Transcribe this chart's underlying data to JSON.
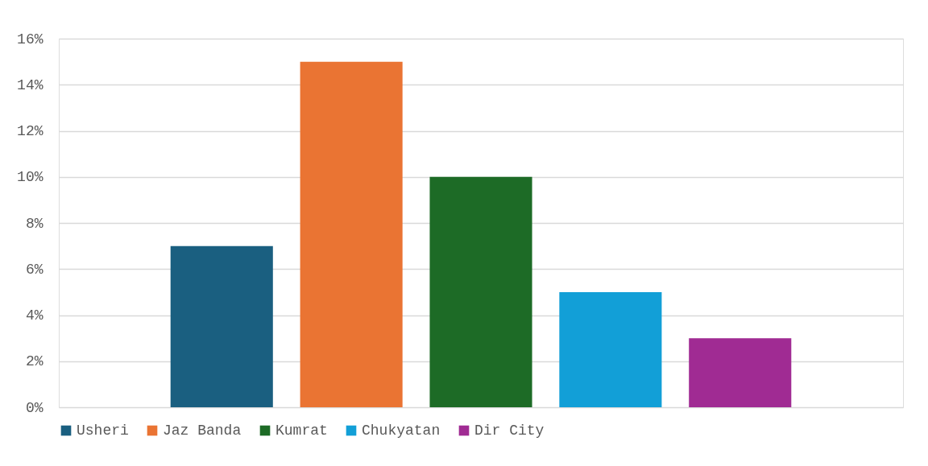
{
  "chart_data": {
    "type": "bar",
    "categories": [
      null
    ],
    "series": [
      {
        "name": "Usheri",
        "color": "#1a5f80",
        "values": [
          7
        ]
      },
      {
        "name": "Jaz Banda",
        "color": "#ea7433",
        "values": [
          15
        ]
      },
      {
        "name": "Kumrat",
        "color": "#1d6b26",
        "values": [
          10
        ]
      },
      {
        "name": "Chukyatan",
        "color": "#129fd7",
        "values": [
          5
        ]
      },
      {
        "name": "Dir City",
        "color": "#a02b93",
        "values": [
          3
        ]
      }
    ],
    "ylim": [
      0,
      16
    ],
    "yticks": [
      {
        "value": 0,
        "label": "0%"
      },
      {
        "value": 2,
        "label": "2%"
      },
      {
        "value": 4,
        "label": "4%"
      },
      {
        "value": 6,
        "label": "6%"
      },
      {
        "value": 8,
        "label": "8%"
      },
      {
        "value": 10,
        "label": "10%"
      },
      {
        "value": 12,
        "label": "12%"
      },
      {
        "value": 14,
        "label": "14%"
      },
      {
        "value": 16,
        "label": "16%"
      }
    ],
    "grid": "y",
    "legend": "bottom",
    "tick_labels": "y"
  }
}
